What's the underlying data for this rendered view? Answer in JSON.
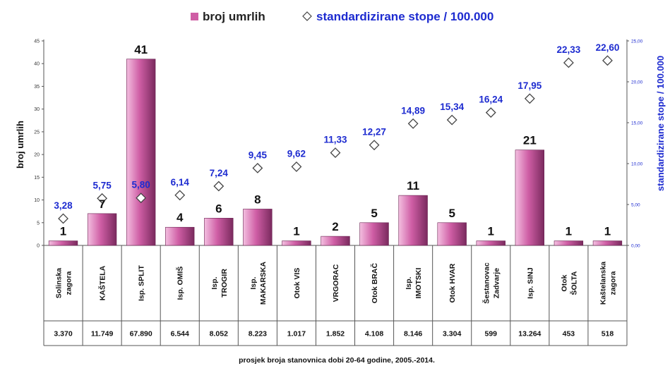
{
  "chart_data": {
    "type": "bar",
    "legend": {
      "count_label": "broj umrlih",
      "rate_label": "standardizirane stope / 100.000",
      "placement": "top"
    },
    "ylabel_left": "broj umrlih",
    "ylabel_right": "standardizirane stope / 100.000",
    "xlabel": "prosjek broja stanovnica dobi 20-64 godine, 2005.-2014.",
    "ylim_left": [
      0,
      45
    ],
    "ylim_right": [
      0,
      25
    ],
    "yticks_left": [
      "0",
      "5",
      "10",
      "15",
      "20",
      "25",
      "30",
      "35",
      "40",
      "45"
    ],
    "yticks_right": [
      "0,00",
      "5,00",
      "10,00",
      "15,00",
      "20,00",
      "25,00"
    ],
    "categories": [
      [
        "Solinska",
        "zagora"
      ],
      [
        "KAŠTELA"
      ],
      [
        "Isp. SPLIT"
      ],
      [
        "Isp. OMIŠ"
      ],
      [
        "Isp.",
        "TROGIR"
      ],
      [
        "Isp.",
        "MAKARSKA"
      ],
      [
        "Otok VIS"
      ],
      [
        "VRGORAC"
      ],
      [
        "Otok BRAČ"
      ],
      [
        "Isp.",
        "IMOTSKI"
      ],
      [
        "Otok HVAR"
      ],
      [
        "Šestanovac",
        "Zadvarje"
      ],
      [
        "Isp. SINJ"
      ],
      [
        "Otok",
        "ŠOLTA"
      ],
      [
        "Kaštelanska",
        "zagora"
      ]
    ],
    "population": [
      "3.370",
      "11.749",
      "67.890",
      "6.544",
      "8.052",
      "8.223",
      "1.017",
      "1.852",
      "4.108",
      "8.146",
      "3.304",
      "599",
      "13.264",
      "453",
      "518"
    ],
    "series": [
      {
        "name": "broj umrlih",
        "kind": "bar",
        "axis": "left",
        "values": [
          1,
          7,
          41,
          4,
          6,
          8,
          1,
          2,
          5,
          11,
          5,
          1,
          21,
          1,
          1
        ],
        "labels": [
          "1",
          "7",
          "41",
          "4",
          "6",
          "8",
          "1",
          "2",
          "5",
          "11",
          "5",
          "1",
          "21",
          "1",
          "1"
        ]
      },
      {
        "name": "standardizirane stope / 100.000",
        "kind": "marker",
        "axis": "right",
        "values": [
          3.28,
          5.75,
          5.8,
          6.14,
          7.24,
          9.45,
          9.62,
          11.33,
          12.27,
          14.89,
          15.34,
          16.24,
          17.95,
          22.33,
          22.6
        ],
        "labels": [
          "3,28",
          "5,75",
          "5,80",
          "6,14",
          "7,24",
          "9,45",
          "9,62",
          "11,33",
          "12,27",
          "14,89",
          "15,34",
          "16,24",
          "17,95",
          "22,33",
          "22,60"
        ]
      }
    ],
    "colors": {
      "bar_light": "#f3bfe0",
      "bar_mid": "#cf5ea5",
      "bar_dark": "#7a2a5e",
      "rate_text": "#1d2bd0",
      "marker_fill": "#ffffff",
      "marker_stroke": "#444444"
    },
    "grid": false
  }
}
